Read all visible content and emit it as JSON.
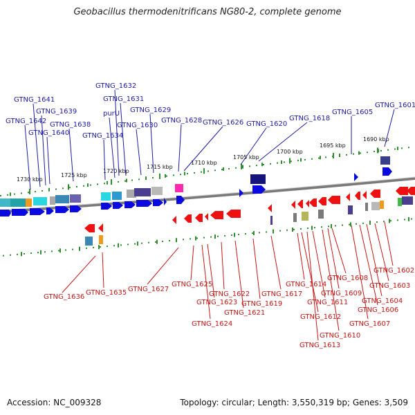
{
  "title": "Geobacillus thermodenitrificans NG80-2, complete genome",
  "footer": {
    "accession": "Accession: NC_009328",
    "topology": "Topology: circular; Length: 3,550,319 bp; Genes: 3,509"
  },
  "colors": {
    "forward": "#1a1aa6",
    "reverse": "#c81414",
    "forward_gene": "#0a0ae0",
    "reverse_gene": "#ee1111",
    "scale_dots": "#2e8b2e",
    "backbone": "#7a7a7a"
  },
  "scale_ticks": [
    "1730 kbp",
    "1725 kbp",
    "1720 kbp",
    "1715 kbp",
    "1710 kbp",
    "1705 kbp",
    "1700 kbp",
    "1695 kbp",
    "1690 kbp"
  ],
  "forward_labels": [
    "GTNG_1641",
    "GTNG_1642",
    "GTNG_1639",
    "GTNG_1640",
    "GTNG_1638",
    "GTNG_1632",
    "GTNG_1631",
    "purU",
    "GTNG_1634",
    "GTNG_1629",
    "GTNG_1630",
    "GTNG_1628",
    "GTNG_1626",
    "GTNG_1620",
    "GTNG_1618",
    "GTNG_1605",
    "GTNG_1601"
  ],
  "reverse_labels": [
    "GTNG_1636",
    "GTNG_1635",
    "GTNG_1627",
    "GTNG_1625",
    "GTNG_1622",
    "GTNG_1623",
    "GTNG_1624",
    "GTNG_1621",
    "GTNG_1619",
    "GTNG_1617",
    "GTNG_1614",
    "GTNG_1612",
    "GTNG_1613",
    "GTNG_1611",
    "GTNG_1610",
    "GTNG_1609",
    "GTNG_1608",
    "GTNG_1607",
    "GTNG_1606",
    "GTNG_1604",
    "GTNG_1603",
    "GTNG_1602"
  ]
}
